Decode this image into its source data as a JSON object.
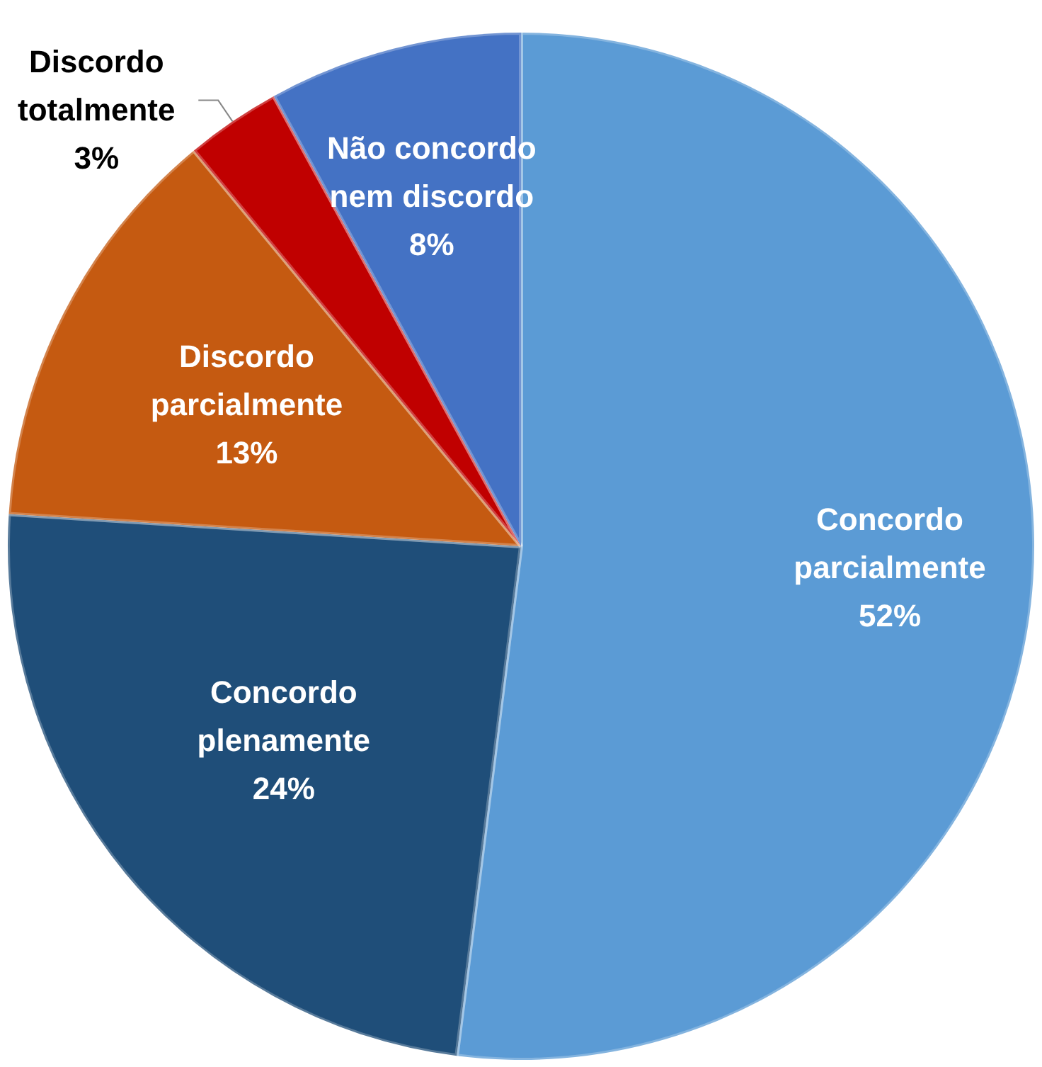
{
  "chart_data": {
    "type": "pie",
    "categories": [
      "Concordo parcialmente",
      "Concordo plenamente",
      "Discordo parcialmente",
      "Discordo totalmente",
      "Não concordo nem discordo"
    ],
    "values": [
      52,
      24,
      13,
      3,
      8
    ],
    "colors": [
      "#5b9bd5",
      "#1f4e79",
      "#c55a11",
      "#c00000",
      "#4472c4"
    ],
    "value_labels": [
      "52%",
      "24%",
      "13%",
      "3%",
      "8%"
    ],
    "legend": false
  }
}
